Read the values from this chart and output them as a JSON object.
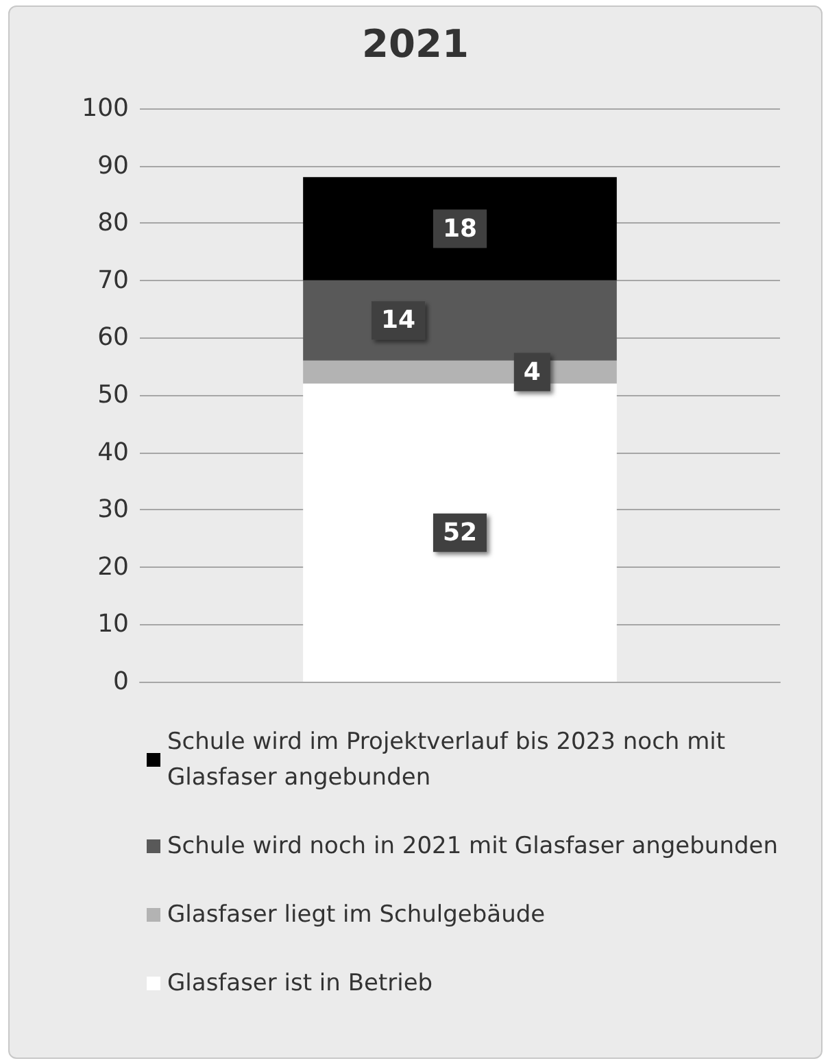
{
  "chart_data": {
    "type": "bar",
    "title": "2021",
    "categories": [
      null
    ],
    "stacked": true,
    "series": [
      {
        "name": "Glasfaser ist in Betrieb",
        "color": "#ffffff",
        "values": [
          52
        ]
      },
      {
        "name": "Glasfaser liegt im Schulgebäude",
        "color": "#b3b3b3",
        "values": [
          4
        ]
      },
      {
        "name": "Schule wird noch in 2021 mit Glasfaser angebunden",
        "color": "#595959",
        "values": [
          14
        ]
      },
      {
        "name": "Schule wird im Projektverlauf bis 2023 noch mit Glasfaser angebunden",
        "color": "#000000",
        "values": [
          18
        ]
      }
    ],
    "ylim": [
      0,
      100
    ],
    "yticks": [
      0,
      10,
      20,
      30,
      40,
      50,
      60,
      70,
      80,
      90,
      100
    ],
    "grid": "y",
    "legend": "bottom",
    "data_labels": true
  }
}
